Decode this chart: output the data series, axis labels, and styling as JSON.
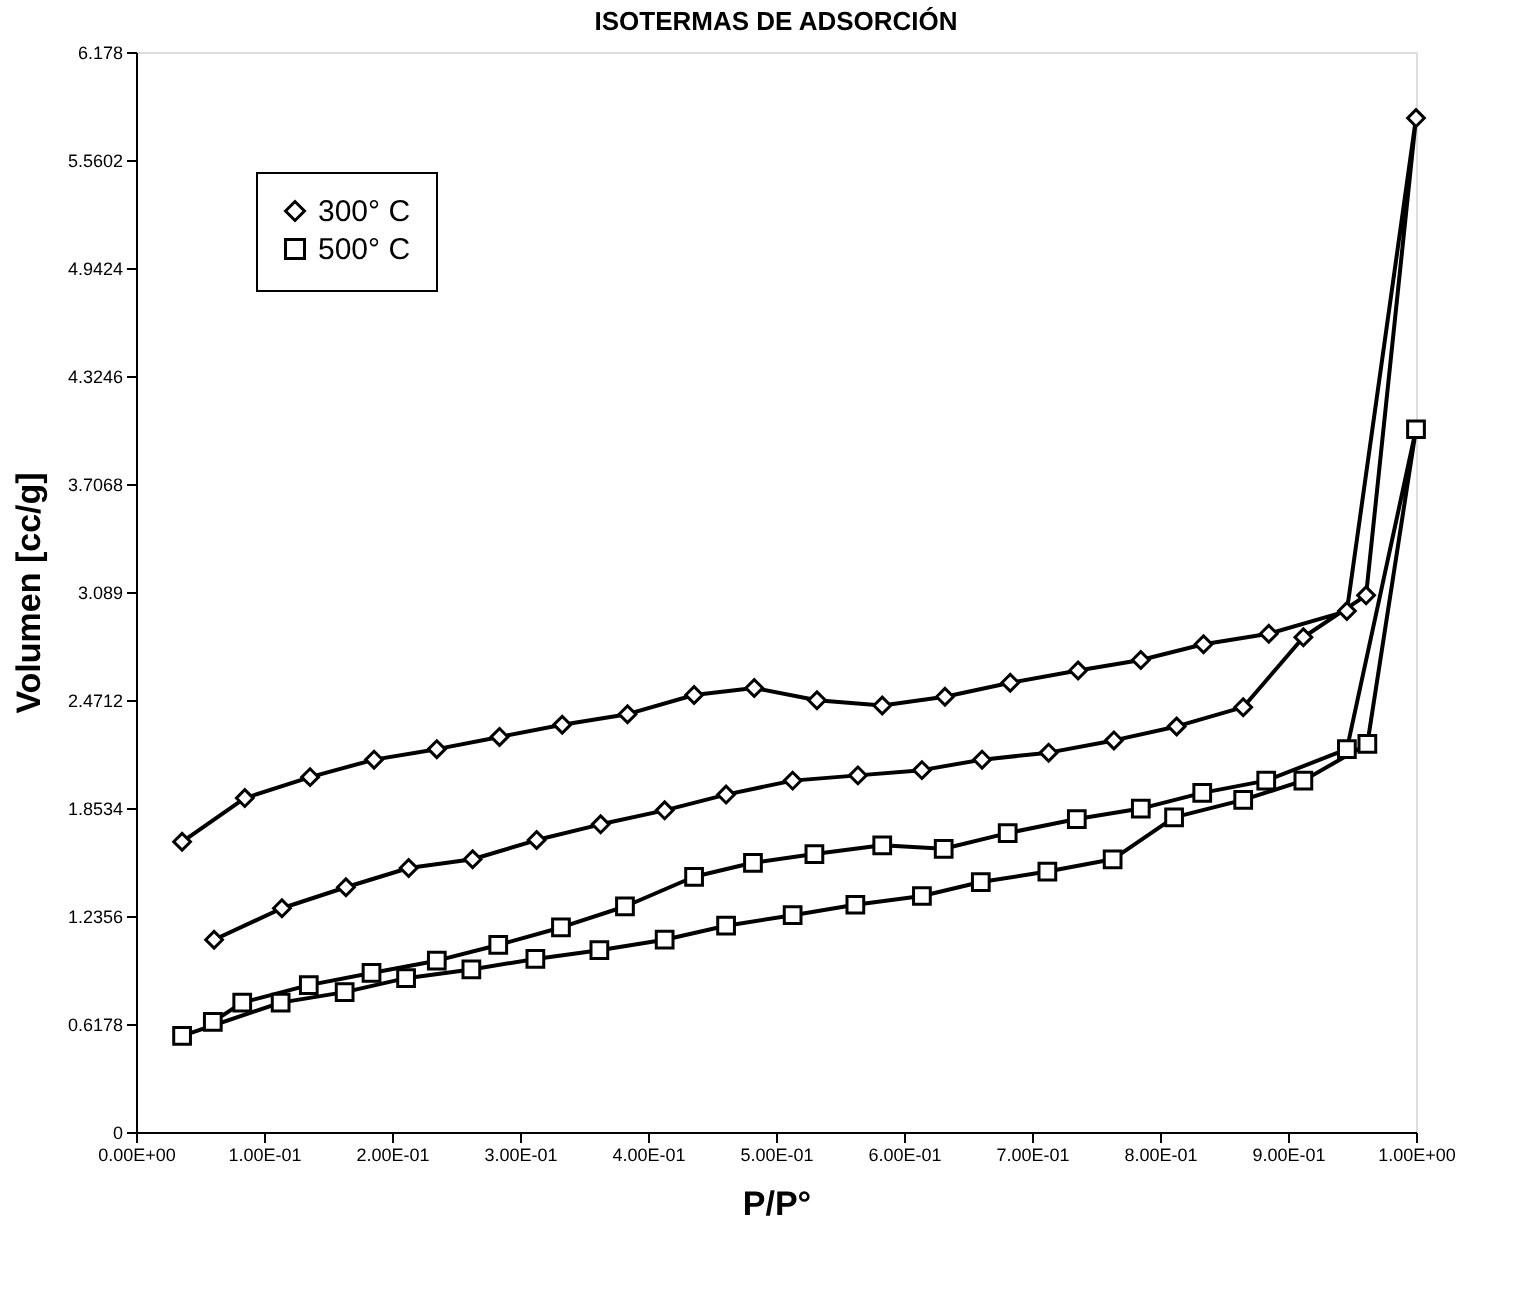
{
  "chart_data": {
    "type": "line",
    "title": "ISOTERMAS DE ADSORCIÓN",
    "xlabel": "P/P°",
    "ylabel": "Volumen [cc/g]",
    "xlim": [
      0,
      1
    ],
    "ylim": [
      0,
      6.178
    ],
    "xticks": [
      {
        "value": 0,
        "label": "0.00E+00"
      },
      {
        "value": 0.1,
        "label": "1.00E-01"
      },
      {
        "value": 0.2,
        "label": "2.00E-01"
      },
      {
        "value": 0.3,
        "label": "3.00E-01"
      },
      {
        "value": 0.4,
        "label": "4.00E-01"
      },
      {
        "value": 0.5,
        "label": "5.00E-01"
      },
      {
        "value": 0.6,
        "label": "6.00E-01"
      },
      {
        "value": 0.7,
        "label": "7.00E-01"
      },
      {
        "value": 0.8,
        "label": "8.00E-01"
      },
      {
        "value": 0.9,
        "label": "9.00E-01"
      },
      {
        "value": 1,
        "label": "1.00E+00"
      }
    ],
    "yticks": [
      0,
      0.6178,
      1.2356,
      1.8534,
      2.4712,
      3.089,
      3.7068,
      4.3246,
      4.9424,
      5.5602,
      6.178
    ],
    "grid": false,
    "legend": "top left",
    "line_style": "solid",
    "series": [
      {
        "name": "300° C",
        "color": "#000000",
        "marker": "diamond",
        "x": [
          0.061,
          0.114,
          0.164,
          0.213,
          0.263,
          0.313,
          0.363,
          0.413,
          0.461,
          0.513,
          0.564,
          0.614,
          0.661,
          0.713,
          0.764,
          0.813,
          0.865,
          0.912,
          0.961,
          1.0,
          0.946,
          0.885,
          0.834,
          0.785,
          0.736,
          0.683,
          0.632,
          0.583,
          0.532,
          0.483,
          0.436,
          0.384,
          0.333,
          0.284,
          0.235,
          0.186,
          0.136,
          0.085,
          0.036
        ],
        "values": [
          1.1,
          1.28,
          1.4,
          1.51,
          1.56,
          1.67,
          1.76,
          1.84,
          1.93,
          2.01,
          2.04,
          2.07,
          2.13,
          2.17,
          2.24,
          2.32,
          2.43,
          2.83,
          3.07,
          5.8,
          2.98,
          2.85,
          2.79,
          2.7,
          2.64,
          2.57,
          2.49,
          2.44,
          2.47,
          2.54,
          2.5,
          2.39,
          2.33,
          2.26,
          2.19,
          2.13,
          2.03,
          1.91,
          1.66
        ]
      },
      {
        "name": "500° C",
        "color": "#000000",
        "marker": "square",
        "x": [
          0.036,
          0.113,
          0.163,
          0.211,
          0.262,
          0.312,
          0.362,
          0.413,
          0.461,
          0.513,
          0.562,
          0.614,
          0.66,
          0.712,
          0.763,
          0.811,
          0.865,
          0.912,
          0.962,
          1.0,
          0.946,
          0.883,
          0.833,
          0.785,
          0.735,
          0.681,
          0.631,
          0.583,
          0.53,
          0.482,
          0.436,
          0.382,
          0.332,
          0.283,
          0.235,
          0.184,
          0.135,
          0.083,
          0.06
        ],
        "values": [
          0.55,
          0.74,
          0.8,
          0.88,
          0.93,
          0.99,
          1.04,
          1.1,
          1.18,
          1.24,
          1.3,
          1.35,
          1.43,
          1.49,
          1.56,
          1.8,
          1.9,
          2.01,
          2.22,
          4.02,
          2.19,
          2.01,
          1.94,
          1.85,
          1.79,
          1.71,
          1.62,
          1.64,
          1.59,
          1.54,
          1.46,
          1.29,
          1.17,
          1.07,
          0.98,
          0.91,
          0.84,
          0.74,
          0.63
        ]
      }
    ]
  }
}
